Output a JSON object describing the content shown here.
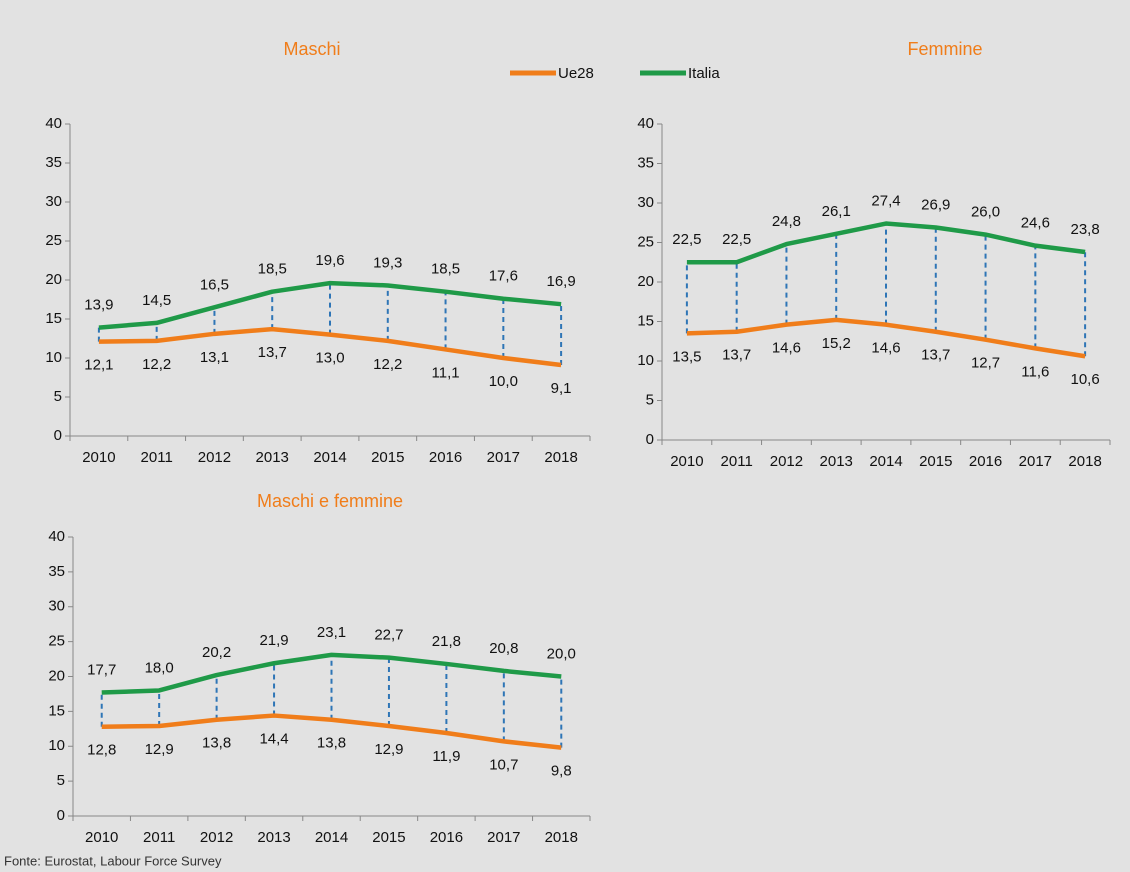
{
  "chart_data": [
    {
      "type": "line",
      "title": "Maschi",
      "categories": [
        "2010",
        "2011",
        "2012",
        "2013",
        "2014",
        "2015",
        "2016",
        "2017",
        "2018"
      ],
      "series": [
        {
          "name": "Ue28",
          "color": "#f07d1a",
          "values": [
            12.1,
            12.2,
            13.1,
            13.7,
            13.0,
            12.2,
            11.1,
            10.0,
            9.1
          ],
          "value_labels": [
            "12,1",
            "12,2",
            "13,1",
            "13,7",
            "13,0",
            "12,2",
            "11,1",
            "10,0",
            "9,1"
          ]
        },
        {
          "name": "Italia",
          "color": "#1f9a48",
          "values": [
            13.9,
            14.5,
            16.5,
            18.5,
            19.6,
            19.3,
            18.5,
            17.6,
            16.9
          ],
          "value_labels": [
            "13,9",
            "14,5",
            "16,5",
            "18,5",
            "19,6",
            "19,3",
            "18,5",
            "17,6",
            "16,9"
          ]
        }
      ],
      "ylim": [
        0,
        40
      ],
      "yticks": [
        0,
        5,
        10,
        15,
        20,
        25,
        30,
        35,
        40
      ],
      "grid": false
    },
    {
      "type": "line",
      "title": "Femmine",
      "categories": [
        "2010",
        "2011",
        "2012",
        "2013",
        "2014",
        "2015",
        "2016",
        "2017",
        "2018"
      ],
      "series": [
        {
          "name": "Ue28",
          "color": "#f07d1a",
          "values": [
            13.5,
            13.7,
            14.6,
            15.2,
            14.6,
            13.7,
            12.7,
            11.6,
            10.6
          ],
          "value_labels": [
            "13,5",
            "13,7",
            "14,6",
            "15,2",
            "14,6",
            "13,7",
            "12,7",
            "11,6",
            "10,6"
          ]
        },
        {
          "name": "Italia",
          "color": "#1f9a48",
          "values": [
            22.5,
            22.5,
            24.8,
            26.1,
            27.4,
            26.9,
            26.0,
            24.6,
            23.8
          ],
          "value_labels": [
            "22,5",
            "22,5",
            "24,8",
            "26,1",
            "27,4",
            "26,9",
            "26,0",
            "24,6",
            "23,8"
          ]
        }
      ],
      "ylim": [
        0,
        40
      ],
      "yticks": [
        0,
        5,
        10,
        15,
        20,
        25,
        30,
        35,
        40
      ],
      "grid": false
    },
    {
      "type": "line",
      "title": "Maschi e femmine",
      "categories": [
        "2010",
        "2011",
        "2012",
        "2013",
        "2014",
        "2015",
        "2016",
        "2017",
        "2018"
      ],
      "series": [
        {
          "name": "Ue28",
          "color": "#f07d1a",
          "values": [
            12.8,
            12.9,
            13.8,
            14.4,
            13.8,
            12.9,
            11.9,
            10.7,
            9.8
          ],
          "value_labels": [
            "12,8",
            "12,9",
            "13,8",
            "14,4",
            "13,8",
            "12,9",
            "11,9",
            "10,7",
            "9,8"
          ]
        },
        {
          "name": "Italia",
          "color": "#1f9a48",
          "values": [
            17.7,
            18.0,
            20.2,
            21.9,
            23.1,
            22.7,
            21.8,
            20.8,
            20.0
          ],
          "value_labels": [
            "17,7",
            "18,0",
            "20,2",
            "21,9",
            "23,1",
            "22,7",
            "21,8",
            "20,8",
            "20,0"
          ]
        }
      ],
      "ylim": [
        0,
        40
      ],
      "yticks": [
        0,
        5,
        10,
        15,
        20,
        25,
        30,
        35,
        40
      ],
      "grid": false
    }
  ],
  "source": "Fonte: Eurostat, Labour Force Survey"
}
